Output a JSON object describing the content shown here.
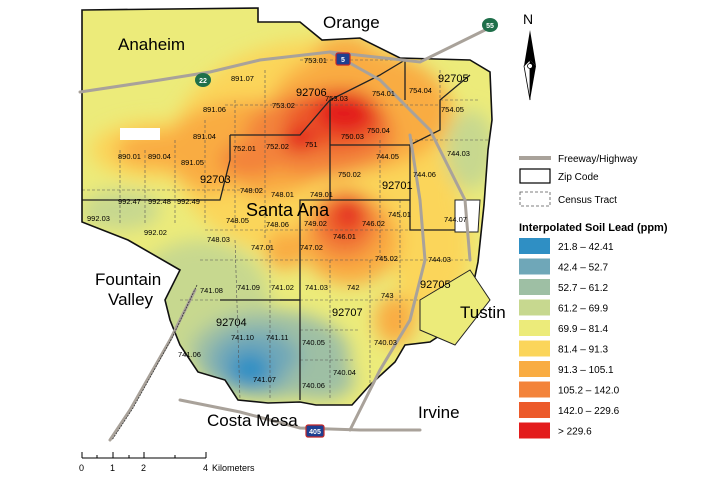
{
  "places": {
    "orange": "Orange",
    "anaheim": "Anaheim",
    "santa_ana": "Santa Ana",
    "fountain_valley": [
      "Fountain",
      "Valley"
    ],
    "tustin": "Tustin",
    "costa_mesa": "Costa Mesa",
    "irvine": "Irvine"
  },
  "zip_codes": [
    "92706",
    "92705",
    "92703",
    "92701",
    "92705",
    "92704",
    "92707"
  ],
  "tracts": [
    "753.01",
    "753.02",
    "753.03",
    "754.01",
    "754.04",
    "754.05",
    "891.07",
    "891.06",
    "891.04",
    "890.01",
    "890.04",
    "891.05",
    "752.01",
    "752.02",
    "751",
    "750.03",
    "750.04",
    "744.05",
    "744.03",
    "744.06",
    "750.02",
    "749.01",
    "748.02",
    "748.01",
    "992.47",
    "992.48",
    "992.49",
    "992.02",
    "992.03",
    "748.05",
    "748.06",
    "749.02",
    "746.01",
    "746.02",
    "745.01",
    "744.07",
    "748.03",
    "747.01",
    "747.02",
    "745.02",
    "744.03",
    "741.08",
    "741.09",
    "741.02",
    "741.03",
    "742",
    "743",
    "741.06",
    "741.10",
    "741.11",
    "740.05",
    "741.07",
    "740.06",
    "740.04",
    "740.03"
  ],
  "highways": {
    "i5": "5",
    "i405": "405",
    "sr22": "22",
    "sr55": "55"
  },
  "north_label": "N",
  "legend": {
    "symbols": [
      "Freeway/Highway",
      "Zip Code",
      "Census Tract"
    ],
    "title": "Interpolated Soil Lead (ppm)",
    "classes": [
      {
        "label": "21.8 – 42.41",
        "color": "#2f8fc4"
      },
      {
        "label": "42.4 – 52.7",
        "color": "#6fa7b8"
      },
      {
        "label": "52.7 – 61.2",
        "color": "#9ebfa4"
      },
      {
        "label": "61.2 – 69.9",
        "color": "#c7d88f"
      },
      {
        "label": "69.9 – 81.4",
        "color": "#eceb7a"
      },
      {
        "label": "81.4 – 91.3",
        "color": "#fbd55a"
      },
      {
        "label": "91.3 – 105.1",
        "color": "#f9ac42"
      },
      {
        "label": "105.2 – 142.0",
        "color": "#f3833a"
      },
      {
        "label": "142.0 – 229.6",
        "color": "#ec5a2a"
      },
      {
        "label": "> 229.6",
        "color": "#e31c1c"
      }
    ]
  },
  "scale": {
    "ticks": [
      "0",
      "1",
      "2",
      "4"
    ],
    "unit": "Kilometers"
  }
}
